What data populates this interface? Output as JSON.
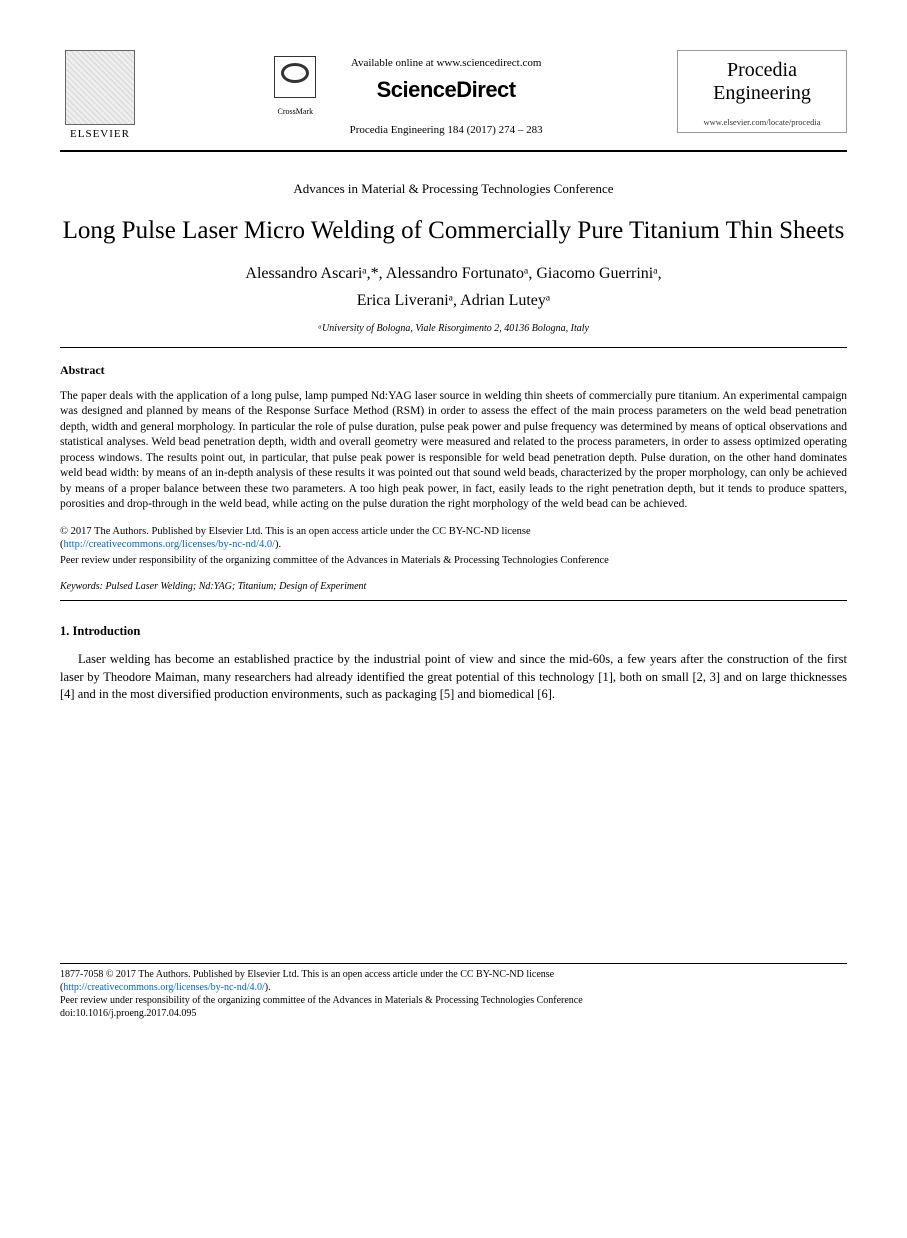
{
  "header": {
    "elsevier_label": "ELSEVIER",
    "crossmark_label": "CrossMark",
    "available_online": "Available online at www.sciencedirect.com",
    "sciencedirect": "ScienceDirect",
    "journal_ref": "Procedia Engineering 184 (2017) 274 – 283",
    "journal_name_1": "Procedia",
    "journal_name_2": "Engineering",
    "journal_url": "www.elsevier.com/locate/procedia"
  },
  "conference": "Advances in Material & Processing Technologies Conference",
  "title": "Long Pulse Laser Micro Welding of Commercially Pure Titanium Thin Sheets",
  "authors_line1": "Alessandro Ascariᵃ,*, Alessandro Fortunatoᵃ, Giacomo Guerriniᵃ,",
  "authors_line2": "Erica Liveraniᵃ, Adrian Luteyᵃ",
  "affiliation": "ᵃUniversity of Bologna, Viale Risorgimento 2, 40136 Bologna, Italy",
  "abstract_head": "Abstract",
  "abstract_body": "The paper deals with the application of a long pulse, lamp pumped Nd:YAG laser source in welding thin sheets of commercially pure titanium. An experimental campaign was designed and planned by means of the Response Surface Method (RSM) in order to assess the effect of the main process parameters on the weld bead penetration depth, width and general morphology. In particular the role of pulse duration, pulse peak power and pulse frequency was determined by means of optical observations and statistical analyses. Weld bead penetration depth, width and overall geometry were measured and related to the process parameters, in order to assess optimized operating process windows. The results point out, in particular, that pulse peak power is responsible for weld bead penetration depth. Pulse duration, on the other hand dominates weld bead width: by means of an in-depth analysis of these results it was pointed out that sound weld beads, characterized by the proper morphology, can only be achieved by means of a proper balance between these two parameters. A too high peak power, in fact, easily leads to the right penetration depth, but it tends to produce spatters, porosities and drop-through in the weld bead, while acting on the pulse duration the right morphology of the weld bead can be achieved.",
  "license_line1": "© 2017 The Authors. Published by Elsevier Ltd. This is an open access article under the CC BY-NC-ND license",
  "license_link": "http://creativecommons.org/licenses/by-nc-nd/4.0/",
  "license_close": ").",
  "peer_review": "Peer review under responsibility of the organizing committee of the Advances in Materials & Processing Technologies Conference",
  "keywords_label": "Keywords:",
  "keywords_text": " Pulsed Laser Welding; Nd:YAG; Titanium; Design of Experiment",
  "intro_head": "1. Introduction",
  "intro_body": "Laser welding has become an established practice by the industrial point of view and since the mid-60s, a few years after the construction of the first laser by Theodore Maiman, many researchers had already identified the great potential of this technology [1], both on small [2, 3] and on large thicknesses [4] and in the most diversified production environments, such as packaging [5] and biomedical [6].",
  "footer": {
    "issn_line": "1877-7058 © 2017 The Authors. Published by Elsevier Ltd. This is an open access article under the CC BY-NC-ND license",
    "link": "http://creativecommons.org/licenses/by-nc-nd/4.0/",
    "close": ").",
    "peer": "Peer review under responsibility of the organizing committee of the Advances in Materials & Processing Technologies Conference",
    "doi": "doi:10.1016/j.proeng.2017.04.095"
  },
  "colors": {
    "text": "#000000",
    "link": "#0066cc",
    "background": "#ffffff",
    "rule": "#000000"
  },
  "typography": {
    "body_font": "Times New Roman",
    "title_size_pt": 19,
    "author_size_pt": 12,
    "abstract_size_pt": 9,
    "intro_size_pt": 10
  }
}
